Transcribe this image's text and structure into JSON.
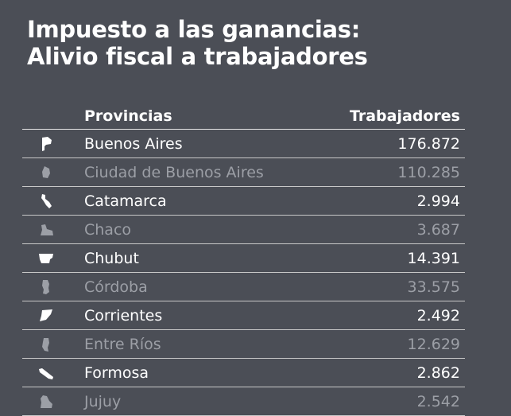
{
  "title_line1": "Impuesto a las ganancias:",
  "title_line2": "Alivio fiscal a trabajadores",
  "chart_data": {
    "type": "table",
    "columns": [
      "Provincias",
      "Trabajadores"
    ],
    "rows": [
      {
        "province": "Buenos Aires",
        "workers": "176.872",
        "icon": "buenos-aires-map-icon"
      },
      {
        "province": "Ciudad de Buenos Aires",
        "workers": "110.285",
        "icon": "caba-map-icon"
      },
      {
        "province": "Catamarca",
        "workers": "2.994",
        "icon": "catamarca-map-icon"
      },
      {
        "province": "Chaco",
        "workers": "3.687",
        "icon": "chaco-map-icon"
      },
      {
        "province": "Chubut",
        "workers": "14.391",
        "icon": "chubut-map-icon"
      },
      {
        "province": "Córdoba",
        "workers": "33.575",
        "icon": "cordoba-map-icon"
      },
      {
        "province": "Corrientes",
        "workers": "2.492",
        "icon": "corrientes-map-icon"
      },
      {
        "province": "Entre Ríos",
        "workers": "12.629",
        "icon": "entre-rios-map-icon"
      },
      {
        "province": "Formosa",
        "workers": "2.862",
        "icon": "formosa-map-icon"
      },
      {
        "province": "Jujuy",
        "workers": "2.542",
        "icon": "jujuy-map-icon"
      }
    ]
  },
  "colors": {
    "background": "#4b4e56",
    "text_bright": "#ffffff",
    "text_dim": "#9c9fa6"
  }
}
